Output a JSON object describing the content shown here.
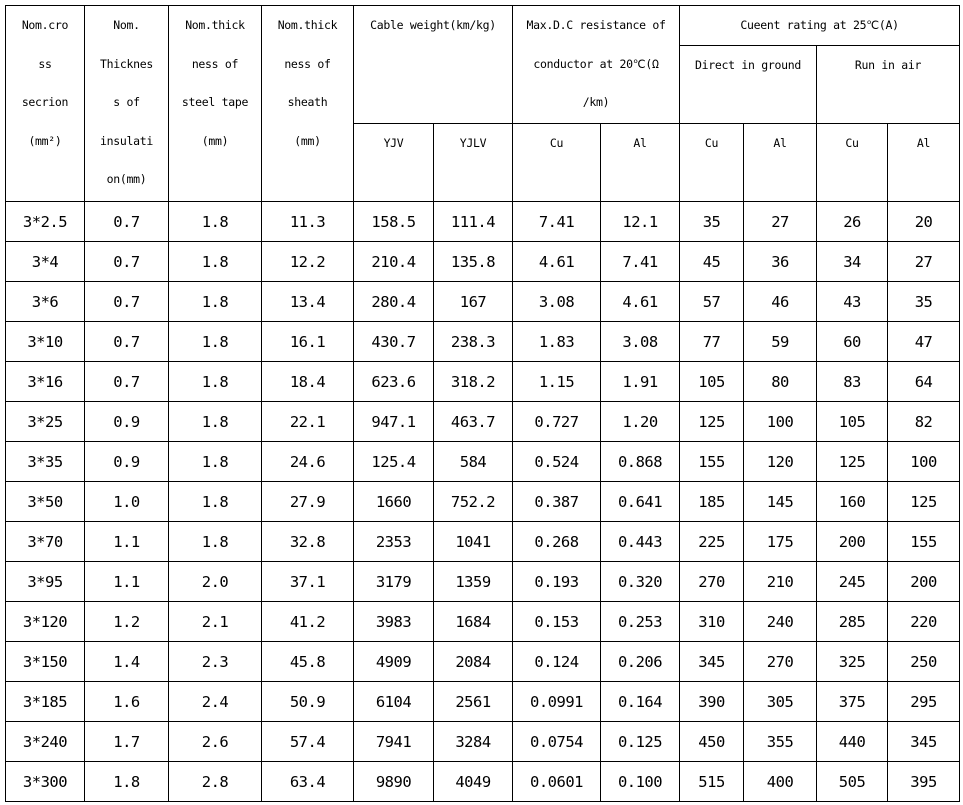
{
  "header": {
    "nom_cross_section": "Nom.cro\nss\nsecrion\n(mm²)",
    "nom_insulation": "Nom.\nThicknes\ns of\ninsulati\non(mm)",
    "nom_steel_tape": "Nom.thick\nness of\nsteel tape\n(mm)",
    "nom_sheath": "Nom.thick\nness of\nsheath\n(mm)",
    "cable_weight": "Cable weight(km/kg)",
    "max_dc_resistance": "Max.D.C resistance of\nconductor at 20℃(Ω\n/km)",
    "current_rating": "Cueent rating at 25℃(A)",
    "direct_in_ground": "Direct in ground",
    "run_in_air": "Run in air",
    "sub": [
      "YJV",
      "YJLV",
      "Cu",
      "Al",
      "Cu",
      "Al",
      "Cu",
      "Al"
    ]
  },
  "rows": [
    [
      "3*2.5",
      "0.7",
      "1.8",
      "11.3",
      "158.5",
      "111.4",
      "7.41",
      "12.1",
      "35",
      "27",
      "26",
      "20"
    ],
    [
      "3*4",
      "0.7",
      "1.8",
      "12.2",
      "210.4",
      "135.8",
      "4.61",
      "7.41",
      "45",
      "36",
      "34",
      "27"
    ],
    [
      "3*6",
      "0.7",
      "1.8",
      "13.4",
      "280.4",
      "167",
      "3.08",
      "4.61",
      "57",
      "46",
      "43",
      "35"
    ],
    [
      "3*10",
      "0.7",
      "1.8",
      "16.1",
      "430.7",
      "238.3",
      "1.83",
      "3.08",
      "77",
      "59",
      "60",
      "47"
    ],
    [
      "3*16",
      "0.7",
      "1.8",
      "18.4",
      "623.6",
      "318.2",
      "1.15",
      "1.91",
      "105",
      "80",
      "83",
      "64"
    ],
    [
      "3*25",
      "0.9",
      "1.8",
      "22.1",
      "947.1",
      "463.7",
      "0.727",
      "1.20",
      "125",
      "100",
      "105",
      "82"
    ],
    [
      "3*35",
      "0.9",
      "1.8",
      "24.6",
      "125.4",
      "584",
      "0.524",
      "0.868",
      "155",
      "120",
      "125",
      "100"
    ],
    [
      "3*50",
      "1.0",
      "1.8",
      "27.9",
      "1660",
      "752.2",
      "0.387",
      "0.641",
      "185",
      "145",
      "160",
      "125"
    ],
    [
      "3*70",
      "1.1",
      "1.8",
      "32.8",
      "2353",
      "1041",
      "0.268",
      "0.443",
      "225",
      "175",
      "200",
      "155"
    ],
    [
      "3*95",
      "1.1",
      "2.0",
      "37.1",
      "3179",
      "1359",
      "0.193",
      "0.320",
      "270",
      "210",
      "245",
      "200"
    ],
    [
      "3*120",
      "1.2",
      "2.1",
      "41.2",
      "3983",
      "1684",
      "0.153",
      "0.253",
      "310",
      "240",
      "285",
      "220"
    ],
    [
      "3*150",
      "1.4",
      "2.3",
      "45.8",
      "4909",
      "2084",
      "0.124",
      "0.206",
      "345",
      "270",
      "325",
      "250"
    ],
    [
      "3*185",
      "1.6",
      "2.4",
      "50.9",
      "6104",
      "2561",
      "0.0991",
      "0.164",
      "390",
      "305",
      "375",
      "295"
    ],
    [
      "3*240",
      "1.7",
      "2.6",
      "57.4",
      "7941",
      "3284",
      "0.0754",
      "0.125",
      "450",
      "355",
      "440",
      "345"
    ],
    [
      "3*300",
      "1.8",
      "2.8",
      "63.4",
      "9890",
      "4049",
      "0.0601",
      "0.100",
      "515",
      "400",
      "505",
      "395"
    ]
  ]
}
